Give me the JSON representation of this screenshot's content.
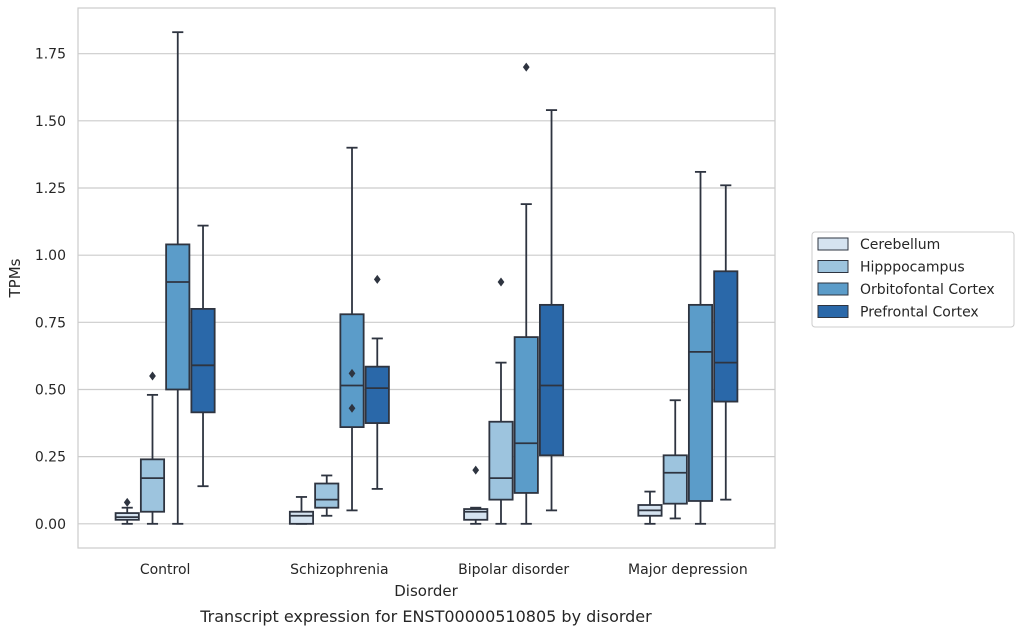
{
  "caption": "Transcript expression for ENST00000510805 by disorder",
  "chart_data": {
    "type": "box",
    "xlabel": "Disorder",
    "ylabel": "TPMs",
    "ylim": [
      -0.09,
      1.92
    ],
    "yticks": [
      "0.00",
      "0.25",
      "0.50",
      "0.75",
      "1.00",
      "1.25",
      "1.50",
      "1.75"
    ],
    "grid": "horizontal",
    "legend_position": "right",
    "categories": [
      "Control",
      "Schizophrenia",
      "Bipolar disorder",
      "Major depression"
    ],
    "series": [
      {
        "name": "Cerebellum",
        "color": "#d5e3f0",
        "boxes": [
          {
            "whisker_low": 0.0,
            "q1": 0.015,
            "median": 0.025,
            "q3": 0.04,
            "whisker_high": 0.06,
            "outliers": [
              0.08
            ]
          },
          {
            "whisker_low": 0.0,
            "q1": 0.0,
            "median": 0.03,
            "q3": 0.045,
            "whisker_high": 0.1,
            "outliers": []
          },
          {
            "whisker_low": 0.0,
            "q1": 0.015,
            "median": 0.045,
            "q3": 0.055,
            "whisker_high": 0.06,
            "outliers": [
              0.2
            ]
          },
          {
            "whisker_low": 0.0,
            "q1": 0.03,
            "median": 0.05,
            "q3": 0.07,
            "whisker_high": 0.12,
            "outliers": []
          }
        ]
      },
      {
        "name": "Hipppocampus",
        "color": "#9dc4de",
        "boxes": [
          {
            "whisker_low": 0.0,
            "q1": 0.045,
            "median": 0.17,
            "q3": 0.24,
            "whisker_high": 0.48,
            "outliers": [
              0.55
            ]
          },
          {
            "whisker_low": 0.03,
            "q1": 0.06,
            "median": 0.09,
            "q3": 0.15,
            "whisker_high": 0.18,
            "outliers": []
          },
          {
            "whisker_low": 0.0,
            "q1": 0.09,
            "median": 0.17,
            "q3": 0.38,
            "whisker_high": 0.6,
            "outliers": [
              0.9
            ]
          },
          {
            "whisker_low": 0.02,
            "q1": 0.075,
            "median": 0.19,
            "q3": 0.255,
            "whisker_high": 0.46,
            "outliers": []
          }
        ]
      },
      {
        "name": "Orbitofontal Cortex",
        "color": "#5b9cc9",
        "boxes": [
          {
            "whisker_low": 0.0,
            "q1": 0.5,
            "median": 0.9,
            "q3": 1.04,
            "whisker_high": 1.83,
            "outliers": []
          },
          {
            "whisker_low": 0.05,
            "q1": 0.36,
            "median": 0.515,
            "q3": 0.78,
            "whisker_high": 1.4,
            "outliers": [
              0.56,
              0.43
            ]
          },
          {
            "whisker_low": 0.0,
            "q1": 0.115,
            "median": 0.3,
            "q3": 0.695,
            "whisker_high": 1.19,
            "outliers": [
              1.7
            ]
          },
          {
            "whisker_low": 0.0,
            "q1": 0.085,
            "median": 0.64,
            "q3": 0.815,
            "whisker_high": 1.31,
            "outliers": []
          }
        ]
      },
      {
        "name": "Prefrontal Cortex",
        "color": "#2a68a9",
        "boxes": [
          {
            "whisker_low": 0.14,
            "q1": 0.415,
            "median": 0.59,
            "q3": 0.8,
            "whisker_high": 1.11,
            "outliers": []
          },
          {
            "whisker_low": 0.13,
            "q1": 0.375,
            "median": 0.505,
            "q3": 0.585,
            "whisker_high": 0.69,
            "outliers": [
              0.91
            ]
          },
          {
            "whisker_low": 0.05,
            "q1": 0.255,
            "median": 0.515,
            "q3": 0.815,
            "whisker_high": 1.54,
            "outliers": []
          },
          {
            "whisker_low": 0.09,
            "q1": 0.455,
            "median": 0.6,
            "q3": 0.94,
            "whisker_high": 1.26,
            "outliers": []
          }
        ]
      }
    ]
  }
}
